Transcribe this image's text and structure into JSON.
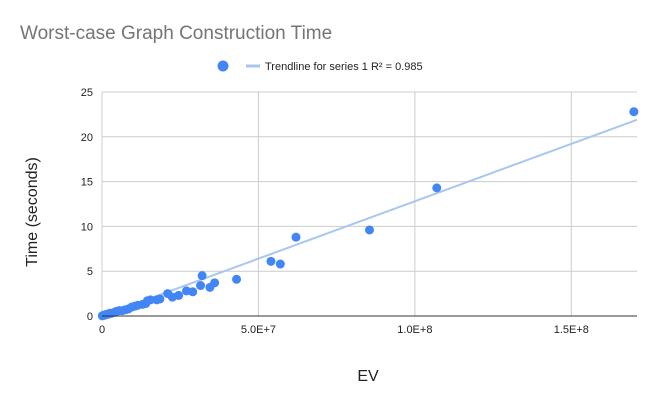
{
  "chart_data": {
    "type": "scatter",
    "title": "Worst-case Graph Construction Time",
    "xlabel": "EV",
    "ylabel": "Time (seconds)",
    "xlim": [
      0,
      171000000
    ],
    "ylim": [
      0,
      25
    ],
    "x_ticks": [
      0,
      50000000,
      100000000,
      150000000
    ],
    "x_tick_labels": [
      "0",
      "5.0E+7",
      "1.0E+8",
      "1.5E+8"
    ],
    "y_ticks": [
      0,
      5,
      10,
      15,
      20,
      25
    ],
    "y_tick_labels": [
      "0",
      "5",
      "10",
      "15",
      "20",
      "25"
    ],
    "grid": true,
    "legend_position": "top",
    "series": [
      {
        "color": "#4285f4",
        "points": [
          [
            170000000,
            22.8
          ],
          [
            107000000,
            14.3
          ],
          [
            85500000,
            9.6
          ],
          [
            62000000,
            8.8
          ],
          [
            57000000,
            5.8
          ],
          [
            54000000,
            6.1
          ],
          [
            43000000,
            4.1
          ],
          [
            36000000,
            3.7
          ],
          [
            34500000,
            3.2
          ],
          [
            32000000,
            4.5
          ],
          [
            31500000,
            3.4
          ],
          [
            29000000,
            2.7
          ],
          [
            27000000,
            2.8
          ],
          [
            24500000,
            2.3
          ],
          [
            22500000,
            2.1
          ],
          [
            21000000,
            2.5
          ],
          [
            18500000,
            1.9
          ],
          [
            17500000,
            1.8
          ],
          [
            15500000,
            1.8
          ],
          [
            14500000,
            1.7
          ],
          [
            14000000,
            1.4
          ],
          [
            13000000,
            1.3
          ],
          [
            11500000,
            1.2
          ],
          [
            10500000,
            1.1
          ],
          [
            9500000,
            1.0
          ],
          [
            8500000,
            0.8
          ],
          [
            7500000,
            0.7
          ],
          [
            6500000,
            0.6
          ],
          [
            5500000,
            0.6
          ],
          [
            4500000,
            0.5
          ],
          [
            4000000,
            0.4
          ],
          [
            3000000,
            0.3
          ],
          [
            2500000,
            0.3
          ],
          [
            2000000,
            0.2
          ],
          [
            1500000,
            0.2
          ],
          [
            1000000,
            0.1
          ],
          [
            600000,
            0.1
          ],
          [
            300000,
            0.05
          ],
          [
            100000,
            0.02
          ]
        ]
      }
    ],
    "trendline": {
      "label": "Trendline for series 1 R² = 0.985",
      "color": "#a8c7f0",
      "start": [
        0,
        0
      ],
      "end": [
        171000000,
        21.9
      ]
    }
  }
}
